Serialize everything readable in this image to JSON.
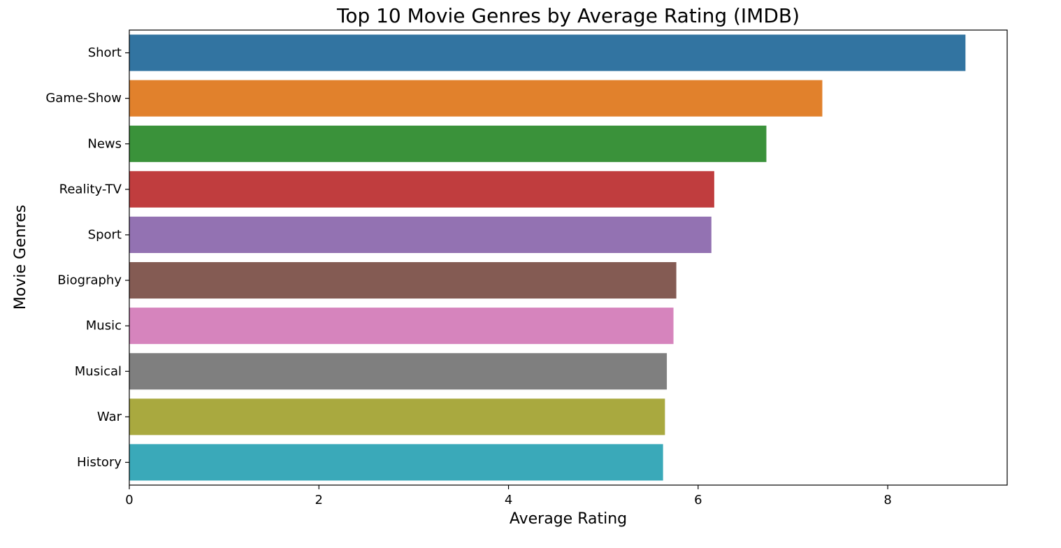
{
  "chart_data": {
    "type": "bar",
    "orientation": "horizontal",
    "title": "Top 10 Movie Genres by Average Rating (IMDB)",
    "xlabel": "Average Rating",
    "ylabel": "Movie Genres",
    "categories": [
      "Short",
      "Game-Show",
      "News",
      "Reality-TV",
      "Sport",
      "Biography",
      "Music",
      "Musical",
      "War",
      "History"
    ],
    "values": [
      8.82,
      7.31,
      6.72,
      6.17,
      6.14,
      5.77,
      5.74,
      5.67,
      5.65,
      5.63
    ],
    "colors": [
      "#3274a1",
      "#e1812c",
      "#3a923a",
      "#c03d3e",
      "#9372b2",
      "#845b53",
      "#d684bd",
      "#7f7f7f",
      "#a9a93f",
      "#3aa9b9"
    ],
    "xlim": [
      0,
      9.26
    ],
    "xticks": [
      0,
      2,
      4,
      6,
      8
    ],
    "grid": false,
    "legend": "none"
  }
}
